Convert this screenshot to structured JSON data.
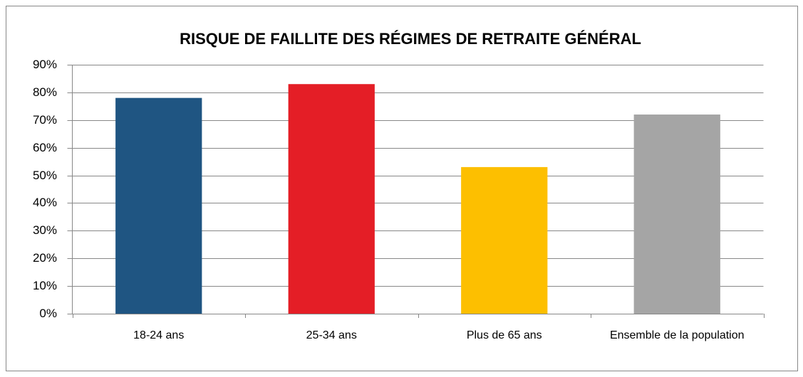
{
  "chart_data": {
    "type": "bar",
    "title": "RISQUE DE FAILLITE DES RÉGIMES DE RETRAITE GÉNÉRAL",
    "categories": [
      "18-24 ans",
      "25-34 ans",
      "Plus de 65 ans",
      "Ensemble de la population"
    ],
    "values": [
      78,
      83,
      53,
      72
    ],
    "colors": [
      "#1f5582",
      "#e41e26",
      "#fdbf00",
      "#a5a5a5"
    ],
    "ylim": [
      0,
      90
    ],
    "yticks": [
      {
        "value": 0,
        "label": "0%"
      },
      {
        "value": 10,
        "label": "10%"
      },
      {
        "value": 20,
        "label": "20%"
      },
      {
        "value": 30,
        "label": "30%"
      },
      {
        "value": 40,
        "label": "40%"
      },
      {
        "value": 50,
        "label": "50%"
      },
      {
        "value": 60,
        "label": "60%"
      },
      {
        "value": 70,
        "label": "70%"
      },
      {
        "value": 80,
        "label": "80%"
      },
      {
        "value": 90,
        "label": "90%"
      }
    ],
    "grid": true
  }
}
